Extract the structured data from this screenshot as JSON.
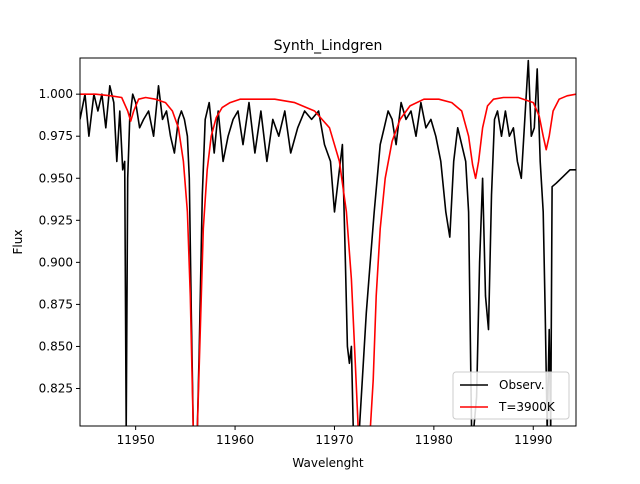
{
  "chart_data": {
    "type": "line",
    "title": "Synth_Lindgren",
    "xlabel": "Wavelenght",
    "ylabel": "Flux",
    "xlim": [
      11944.4,
      11994.3
    ],
    "ylim": [
      0.8027,
      1.0215
    ],
    "xticks": [
      11950,
      11960,
      11970,
      11980,
      11990
    ],
    "xtick_labels": [
      "11950",
      "11960",
      "11970",
      "11980",
      "11990"
    ],
    "yticks": [
      0.825,
      0.85,
      0.875,
      0.9,
      0.925,
      0.95,
      0.975,
      1.0
    ],
    "ytick_labels": [
      "0.825",
      "0.850",
      "0.875",
      "0.900",
      "0.925",
      "0.950",
      "0.975",
      "1.000"
    ],
    "grid": false,
    "legend_position": "lower-right",
    "series": [
      {
        "name": "Observ.",
        "color": "#000000",
        "x": [
          11944.4,
          11944.9,
          11945.3,
          11945.8,
          11946.2,
          11946.6,
          11947.0,
          11947.4,
          11947.8,
          11948.1,
          11948.4,
          11948.7,
          11948.9,
          11949.05,
          11949.2,
          11949.4,
          11949.7,
          11950.0,
          11950.4,
          11950.8,
          11951.3,
          11951.8,
          11952.3,
          11952.7,
          11953.1,
          11953.5,
          11953.9,
          11954.3,
          11954.6,
          11954.9,
          11955.2,
          11955.4,
          11955.6,
          11955.8,
          11956.0,
          11956.2,
          11956.4,
          11956.7,
          11957.0,
          11957.4,
          11957.9,
          11958.3,
          11958.8,
          11959.3,
          11959.8,
          11960.3,
          11960.8,
          11961.4,
          11962.0,
          11962.6,
          11963.2,
          11963.8,
          11964.4,
          11965.0,
          11965.6,
          11966.3,
          11967.0,
          11967.7,
          11968.4,
          11969.0,
          11969.6,
          11970.0,
          11970.4,
          11970.8,
          11971.1,
          11971.3,
          11971.5,
          11971.7,
          11971.9,
          11972.1,
          11972.3,
          11972.5,
          11972.8,
          11973.2,
          11973.6,
          11974.0,
          11974.3,
          11974.6,
          11975.0,
          11975.4,
          11975.8,
          11976.2,
          11976.7,
          11977.2,
          11977.7,
          11978.2,
          11978.7,
          11979.2,
          11979.7,
          11980.2,
          11980.7,
          11981.2,
          11981.6,
          11982.0,
          11982.4,
          11982.8,
          11983.2,
          11983.5,
          11983.8,
          11984.0,
          11984.3,
          11984.6,
          11984.9,
          11985.2,
          11985.5,
          11985.8,
          11986.1,
          11986.4,
          11986.8,
          11987.2,
          11987.6,
          11988.0,
          11988.4,
          11988.8,
          11989.2,
          11989.5,
          11989.8,
          11990.1,
          11990.4,
          11990.7,
          11991.0,
          11991.2,
          11991.4,
          11991.6,
          11991.75,
          11991.9,
          11992.3,
          11993.0,
          11993.7,
          11994.3
        ],
        "y": [
          0.985,
          1.0,
          0.975,
          1.0,
          0.99,
          1.0,
          0.98,
          1.005,
          0.995,
          0.96,
          0.99,
          0.955,
          0.96,
          0.8,
          0.95,
          0.985,
          1.0,
          0.995,
          0.98,
          0.985,
          0.99,
          0.975,
          1.005,
          0.985,
          0.99,
          0.975,
          0.965,
          0.985,
          0.99,
          0.985,
          0.975,
          0.95,
          0.87,
          0.8,
          0.8,
          0.8,
          0.85,
          0.94,
          0.985,
          0.995,
          0.965,
          0.99,
          0.96,
          0.975,
          0.985,
          0.99,
          0.97,
          0.995,
          0.965,
          0.99,
          0.96,
          0.985,
          0.975,
          0.99,
          0.965,
          0.98,
          0.99,
          0.985,
          0.99,
          0.97,
          0.96,
          0.93,
          0.95,
          0.97,
          0.9,
          0.85,
          0.84,
          0.85,
          0.8,
          0.8,
          0.8,
          0.8,
          0.83,
          0.87,
          0.9,
          0.93,
          0.95,
          0.97,
          0.98,
          0.99,
          0.985,
          0.97,
          0.995,
          0.985,
          0.99,
          0.975,
          0.995,
          0.98,
          0.985,
          0.975,
          0.96,
          0.93,
          0.915,
          0.96,
          0.98,
          0.97,
          0.96,
          0.93,
          0.8,
          0.8,
          0.82,
          0.9,
          0.95,
          0.88,
          0.86,
          0.94,
          0.985,
          0.99,
          0.975,
          0.99,
          0.975,
          0.98,
          0.96,
          0.95,
          0.99,
          1.02,
          0.975,
          0.98,
          1.015,
          0.96,
          0.93,
          0.87,
          0.8,
          0.86,
          0.8,
          0.945,
          0.947,
          0.951,
          0.955,
          0.955
        ]
      },
      {
        "name": "T=3900K",
        "color": "#ff0000",
        "x": [
          11944.4,
          11946.0,
          11947.5,
          11948.6,
          11949.2,
          11949.5,
          11949.8,
          11950.3,
          11951.0,
          11952.0,
          11953.0,
          11953.7,
          11954.3,
          11954.8,
          11955.2,
          11955.5,
          11955.8,
          11956.0,
          11956.2,
          11956.5,
          11956.8,
          11957.2,
          11957.6,
          11958.1,
          11958.7,
          11959.5,
          11960.5,
          11962.0,
          11964.0,
          11966.0,
          11968.0,
          11969.5,
          11970.5,
          11971.2,
          11971.7,
          11972.1,
          11972.4,
          11972.7,
          11973.0,
          11973.3,
          11973.6,
          11973.9,
          11974.2,
          11974.6,
          11975.1,
          11975.8,
          11976.6,
          11977.6,
          11979.0,
          11980.5,
          11981.8,
          11982.8,
          11983.5,
          11983.9,
          11984.2,
          11984.5,
          11984.9,
          11985.4,
          11986.0,
          11987.0,
          11988.5,
          11990.0,
          11990.6,
          11991.0,
          11991.3,
          11991.6,
          11992.0,
          11992.6,
          11993.4,
          11994.3
        ],
        "y": [
          1.0,
          1.0,
          0.999,
          0.998,
          0.99,
          0.984,
          0.99,
          0.997,
          0.998,
          0.997,
          0.995,
          0.99,
          0.98,
          0.96,
          0.93,
          0.88,
          0.8,
          0.8,
          0.8,
          0.86,
          0.92,
          0.955,
          0.975,
          0.986,
          0.992,
          0.995,
          0.997,
          0.997,
          0.997,
          0.995,
          0.99,
          0.98,
          0.96,
          0.93,
          0.89,
          0.84,
          0.8,
          0.8,
          0.8,
          0.8,
          0.8,
          0.83,
          0.88,
          0.92,
          0.95,
          0.972,
          0.985,
          0.993,
          0.997,
          0.997,
          0.995,
          0.99,
          0.975,
          0.958,
          0.95,
          0.96,
          0.98,
          0.993,
          0.997,
          0.998,
          0.998,
          0.995,
          0.987,
          0.975,
          0.967,
          0.975,
          0.99,
          0.997,
          0.999,
          1.0
        ]
      }
    ]
  }
}
